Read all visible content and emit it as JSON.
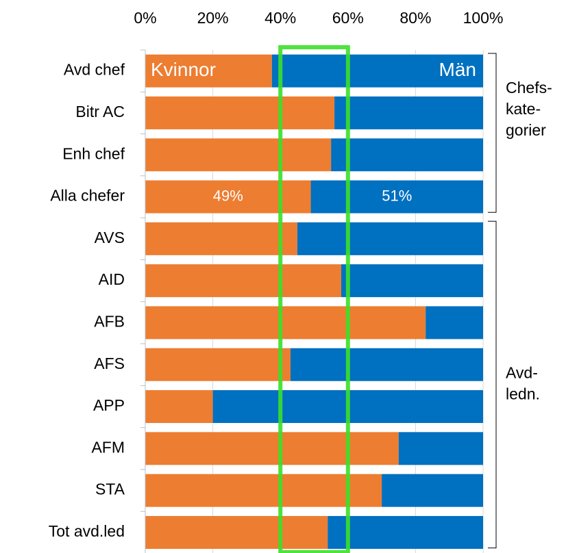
{
  "chart_data": {
    "type": "stacked-barh",
    "categories": [
      "Avd chef",
      "Bitr AC",
      "Enh chef",
      "Alla chefer",
      "AVS",
      "AID",
      "AFB",
      "AFS",
      "APP",
      "AFM",
      "STA",
      "Tot avd.led"
    ],
    "series": [
      {
        "name": "Kvinnor",
        "color": "#ED7D31",
        "values": [
          37.5,
          56,
          55,
          49,
          45,
          58,
          83,
          43,
          20,
          75,
          70,
          54
        ],
        "value_labels": [
          null,
          null,
          null,
          "49%",
          null,
          null,
          null,
          null,
          null,
          null,
          null,
          null
        ]
      },
      {
        "name": "Män",
        "color": "#0070C0",
        "values": [
          62.5,
          44,
          45,
          51,
          55,
          42,
          17,
          57,
          80,
          25,
          30,
          46
        ],
        "value_labels": [
          null,
          null,
          null,
          "51%",
          null,
          null,
          null,
          null,
          null,
          null,
          null,
          null
        ]
      }
    ],
    "xlim": [
      0,
      100
    ],
    "xticks": [
      {
        "value": 0,
        "label": "0%"
      },
      {
        "value": 20,
        "label": "20%"
      },
      {
        "value": 40,
        "label": "40%"
      },
      {
        "value": 60,
        "label": "60%"
      },
      {
        "value": 80,
        "label": "80%"
      },
      {
        "value": 100,
        "label": "100%"
      }
    ],
    "grid": true,
    "highlight": {
      "range": [
        40,
        60
      ],
      "color": "#3BE02A"
    },
    "groups": [
      {
        "label_lines": [
          "Chefs-",
          "kate-",
          "gorier"
        ],
        "rows": 4
      },
      {
        "label_lines": [
          "Avd-",
          "ledn."
        ],
        "rows": 8
      }
    ]
  }
}
